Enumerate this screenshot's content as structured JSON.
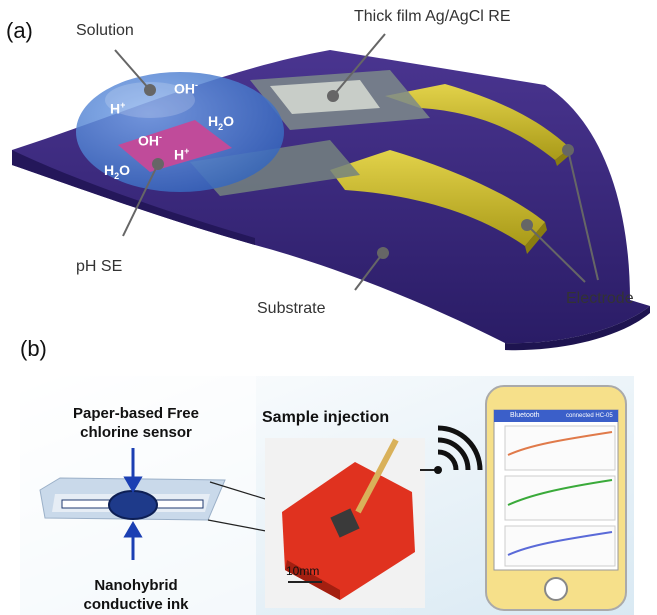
{
  "panel_a": {
    "label": "(a)",
    "callouts": {
      "solution": "Solution",
      "reference": "Thick film Ag/AgCl RE",
      "ph_se": "pH SE",
      "substrate": "Substrate",
      "electrode": "Electrode"
    },
    "species": {
      "oh_top": {
        "base": "OH",
        "sup": "-"
      },
      "h_top": {
        "base": "H",
        "sup": "+"
      },
      "oh_mid": {
        "base": "OH",
        "sup": "-"
      },
      "h2o_right": {
        "base": "H",
        "sub": "2",
        "tail": "O"
      },
      "h_mid": {
        "base": "H",
        "sup": "+"
      },
      "h2o_left": {
        "base": "H",
        "sub": "2",
        "tail": "O"
      }
    }
  },
  "panel_b": {
    "label": "(b)",
    "sensor_label_top": [
      "Paper-based Free",
      "chlorine sensor"
    ],
    "sensor_label_bottom": [
      "Nanohybrid",
      "conductive ink"
    ],
    "injection_label": "Sample injection",
    "scale_bar": "10mm",
    "phone": {
      "app_title": "Bluetooth",
      "app_status": "connected HC-05"
    }
  },
  "colors": {
    "substrate": "#3b2a7e",
    "electrode": "#c9b71f",
    "drop": "#3f78c9",
    "ph_pad": "#c04b9a",
    "device_red": "#e0321f"
  }
}
